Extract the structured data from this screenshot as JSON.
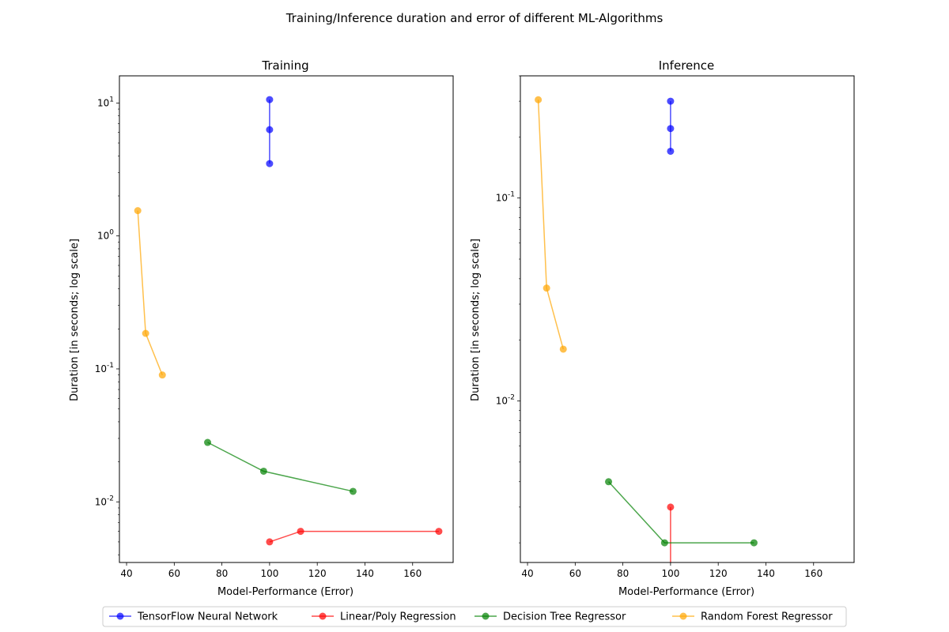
{
  "figure": {
    "title": "Training/Inference duration and error of different ML-Algorithms"
  },
  "legend": {
    "placement": "bottom-center",
    "entries": [
      {
        "name": "TensorFlow Neural Network",
        "color": "#0000ff"
      },
      {
        "name": "Linear/Poly Regression",
        "color": "#ff0000"
      },
      {
        "name": "Decision Tree Regressor",
        "color": "#008000"
      },
      {
        "name": "Random Forest Regressor",
        "color": "#ffa500"
      }
    ]
  },
  "chart_data": [
    {
      "type": "line",
      "title": "Training",
      "xlabel": "Model-Performance (Error)",
      "ylabel": "Duration [in seconds; log scale]",
      "yscale": "log",
      "xlim": [
        37,
        177
      ],
      "ylim": [
        0.0035,
        16
      ],
      "xticks": [
        40,
        60,
        80,
        100,
        120,
        140,
        160
      ],
      "yticks": [
        {
          "value": 0.01,
          "label": "10^-2"
        },
        {
          "value": 0.1,
          "label": "10^-1"
        },
        {
          "value": 1,
          "label": "10^0"
        },
        {
          "value": 10,
          "label": "10^1"
        }
      ],
      "grid": false,
      "series": [
        {
          "name": "TensorFlow Neural Network",
          "color": "#0000ff",
          "points": [
            [
              100,
              3.5
            ],
            [
              100,
              6.3
            ],
            [
              100,
              10.6
            ]
          ]
        },
        {
          "name": "Linear/Poly Regression",
          "color": "#ff0000",
          "points": [
            [
              100,
              0.005
            ],
            [
              113,
              0.006
            ],
            [
              171,
              0.006
            ]
          ]
        },
        {
          "name": "Decision Tree Regressor",
          "color": "#008000",
          "points": [
            [
              74,
              0.028
            ],
            [
              97.5,
              0.017
            ],
            [
              135,
              0.012
            ]
          ]
        },
        {
          "name": "Random Forest Regressor",
          "color": "#ffa500",
          "points": [
            [
              44.7,
              1.55
            ],
            [
              48,
              0.185
            ],
            [
              55,
              0.09
            ]
          ]
        }
      ]
    },
    {
      "type": "line",
      "title": "Inference",
      "xlabel": "Model-Performance (Error)",
      "ylabel": "Duration [in seconds; log scale]",
      "yscale": "log",
      "xlim": [
        37,
        177
      ],
      "ylim": [
        0.0016,
        0.4
      ],
      "xticks": [
        40,
        60,
        80,
        100,
        120,
        140,
        160
      ],
      "yticks": [
        {
          "value": 0.01,
          "label": "10^-2"
        },
        {
          "value": 0.1,
          "label": "10^-1"
        }
      ],
      "grid": false,
      "series": [
        {
          "name": "TensorFlow Neural Network",
          "color": "#0000ff",
          "points": [
            [
              100,
              0.17
            ],
            [
              100,
              0.22
            ],
            [
              100,
              0.3
            ]
          ]
        },
        {
          "name": "Linear/Poly Regression",
          "color": "#ff0000",
          "points": [
            [
              100,
              0.0014
            ],
            [
              100,
              0.003
            ]
          ]
        },
        {
          "name": "Decision Tree Regressor",
          "color": "#008000",
          "points": [
            [
              74,
              0.004
            ],
            [
              97.5,
              0.002
            ],
            [
              135,
              0.002
            ]
          ]
        },
        {
          "name": "Random Forest Regressor",
          "color": "#ffa500",
          "points": [
            [
              44.5,
              0.305
            ],
            [
              48,
              0.036
            ],
            [
              55,
              0.018
            ]
          ]
        }
      ]
    }
  ]
}
